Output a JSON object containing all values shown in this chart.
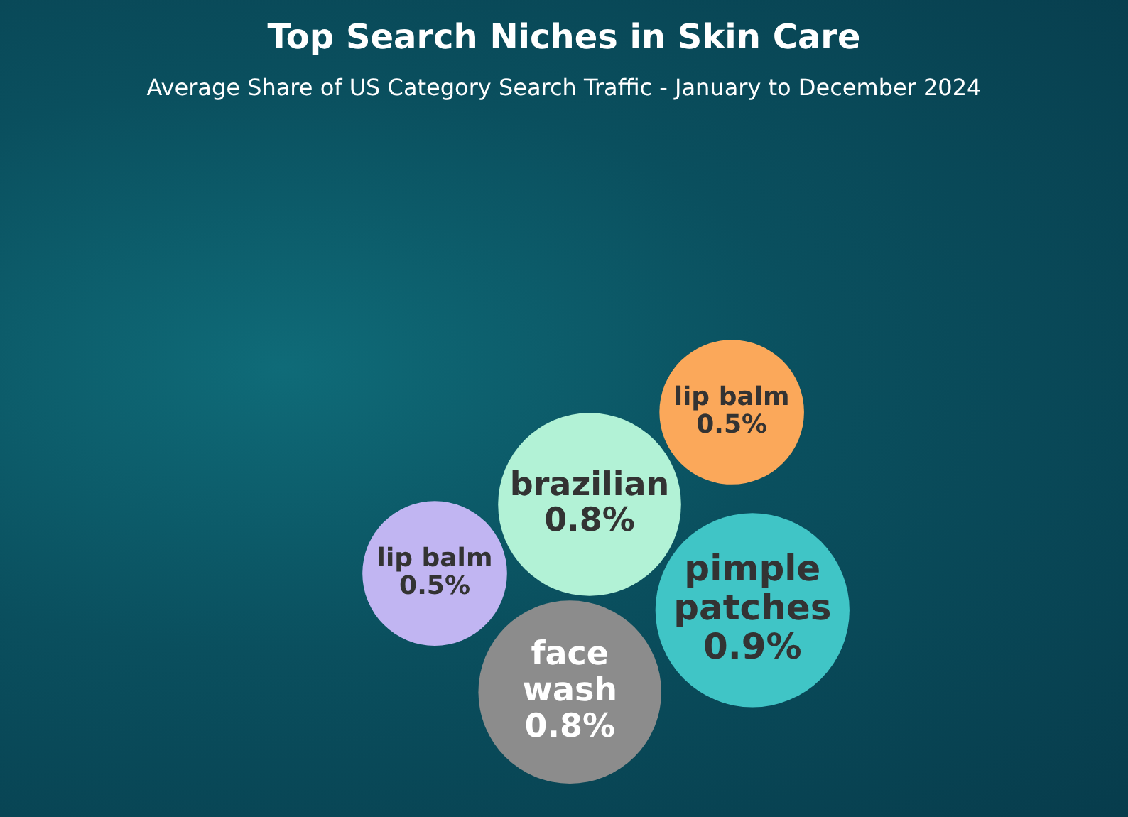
{
  "chart_data": {
    "type": "other",
    "title": "Top Search Niches in Skin Care",
    "subtitle": "Average Share of US Category Search Traffic - January to December 2024",
    "categories": [
      "brazilian",
      "lip balm",
      "pimple patches",
      "face wash",
      "lip balm"
    ],
    "values": [
      0.8,
      0.5,
      0.9,
      0.8,
      0.5
    ],
    "value_labels": [
      "0.8%",
      "0.5%",
      "0.9%",
      "0.8%",
      "0.5%"
    ],
    "colors": [
      "#b2f2d6",
      "#fba85a",
      "#40c5c6",
      "#8c8c8c",
      "#c1b5f2"
    ]
  }
}
